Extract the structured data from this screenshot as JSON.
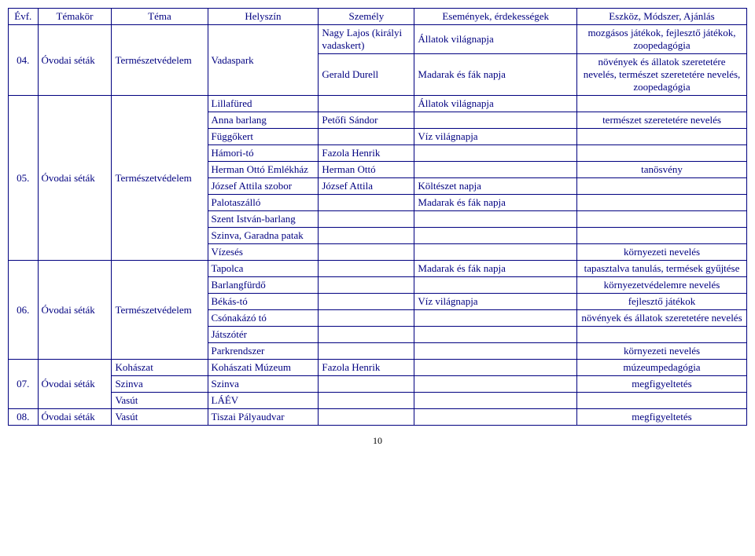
{
  "headers": {
    "evf": "Évf.",
    "temakor": "Témakör",
    "tema": "Téma",
    "helyszin": "Helyszín",
    "szemely": "Személy",
    "esemeny": "Események, érdekességek",
    "eszkoz": "Eszköz, Módszer, Ajánlás"
  },
  "rows": {
    "r04": {
      "evf": "04.",
      "temakor": "Óvodai séták",
      "tema": "Természetvédelem",
      "helyszin": "Vadaspark",
      "sub": [
        {
          "szemely": "Nagy Lajos (királyi vadaskert)",
          "esemeny": "Állatok világnapja",
          "eszkoz": "mozgásos játékok, fejlesztő játékok, zoopedagógia"
        },
        {
          "szemely": "Gerald Durell",
          "esemeny": "Madarak és fák napja",
          "eszkoz": "növények és állatok szeretetére nevelés, természet szeretetére nevelés, zoopedagógia"
        }
      ]
    },
    "r05": {
      "evf": "05.",
      "temakor": "Óvodai séták",
      "tema": "Természetvédelem",
      "sub": [
        {
          "helyszin": "Lillafüred",
          "szemely": "",
          "esemeny": "Állatok világnapja",
          "eszkoz": ""
        },
        {
          "helyszin": "Anna barlang",
          "szemely": "Petőfi Sándor",
          "esemeny": "",
          "eszkoz": "természet szeretetére nevelés"
        },
        {
          "helyszin": "Függőkert",
          "szemely": "",
          "esemeny": "Víz világnapja",
          "eszkoz": ""
        },
        {
          "helyszin": "Hámori-tó",
          "szemely": "Fazola Henrik",
          "esemeny": "",
          "eszkoz": ""
        },
        {
          "helyszin": "Herman Ottó Emlékház",
          "szemely": "Herman Ottó",
          "esemeny": "",
          "eszkoz": "tanösvény"
        },
        {
          "helyszin": "József Attila szobor",
          "szemely": "József Attila",
          "esemeny": "Költészet napja",
          "eszkoz": ""
        },
        {
          "helyszin": "Palotaszálló",
          "szemely": "",
          "esemeny": "Madarak és fák napja",
          "eszkoz": ""
        },
        {
          "helyszin": "Szent István-barlang",
          "szemely": "",
          "esemeny": "",
          "eszkoz": ""
        },
        {
          "helyszin": "Szinva, Garadna patak",
          "szemely": "",
          "esemeny": "",
          "eszkoz": ""
        },
        {
          "helyszin": "Vízesés",
          "szemely": "",
          "esemeny": "",
          "eszkoz": "környezeti nevelés"
        }
      ]
    },
    "r06": {
      "evf": "06.",
      "temakor": "Óvodai séták",
      "tema": "Természetvédelem",
      "sub": [
        {
          "helyszin": "Tapolca",
          "szemely": "",
          "esemeny": "Madarak és fák napja",
          "eszkoz": "tapasztalva tanulás, termések gyűjtése"
        },
        {
          "helyszin": "Barlangfürdő",
          "szemely": "",
          "esemeny": "",
          "eszkoz": "környezetvédelemre nevelés"
        },
        {
          "helyszin": "Békás-tó",
          "szemely": "",
          "esemeny": "Víz világnapja",
          "eszkoz": "fejlesztő játékok"
        },
        {
          "helyszin": "Csónakázó tó",
          "szemely": "",
          "esemeny": "",
          "eszkoz": "növények és állatok szeretetére nevelés"
        },
        {
          "helyszin": "Játszótér",
          "szemely": "",
          "esemeny": "",
          "eszkoz": ""
        },
        {
          "helyszin": "Parkrendszer",
          "szemely": "",
          "esemeny": "",
          "eszkoz": "környezeti nevelés"
        }
      ]
    },
    "r07": {
      "evf": "07.",
      "temakor": "Óvodai séták",
      "sub": [
        {
          "tema": "Kohászat",
          "helyszin": "Kohászati Múzeum",
          "szemely": "Fazola Henrik",
          "esemeny": "",
          "eszkoz": "múzeumpedagógia"
        },
        {
          "tema": "Szinva",
          "helyszin": "Szinva",
          "szemely": "",
          "esemeny": "",
          "eszkoz": "megfigyeltetés"
        },
        {
          "tema": "Vasút",
          "helyszin": "LÁÉV",
          "szemely": "",
          "esemeny": "",
          "eszkoz": ""
        }
      ]
    },
    "r08": {
      "evf": "08.",
      "temakor": "Óvodai séták",
      "tema": "Vasút",
      "helyszin": "Tiszai Pályaudvar",
      "szemely": "",
      "esemeny": "",
      "eszkoz": "megfigyeltetés"
    }
  },
  "page_number": "10"
}
